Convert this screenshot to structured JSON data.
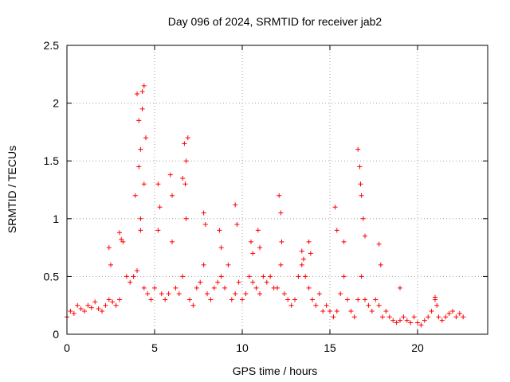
{
  "chart_data": {
    "type": "scatter",
    "title": "Day 096 of 2024, SRMTID for receiver jab2",
    "xlabel": "GPS time / hours",
    "ylabel": "SRMTID / TECUs",
    "xlim": [
      0,
      24
    ],
    "ylim": [
      0,
      2.5
    ],
    "x_ticks": [
      "0",
      "5",
      "10",
      "15",
      "20"
    ],
    "y_ticks": [
      "0",
      "0.5",
      "1",
      "1.5",
      "2",
      "2.5"
    ],
    "grid": true,
    "marker": "plus",
    "series": [
      {
        "name": "SRMTID",
        "color": "#ff0000",
        "x": [
          0.0,
          0.2,
          0.4,
          0.6,
          0.8,
          1.0,
          1.2,
          1.4,
          1.6,
          1.8,
          2.0,
          2.2,
          2.4,
          2.6,
          2.8,
          3.0,
          3.2,
          3.4,
          3.6,
          3.8,
          4.0,
          4.2,
          4.4,
          4.6,
          4.8,
          5.0,
          5.2,
          5.4,
          5.6,
          5.8,
          6.0,
          6.2,
          6.4,
          6.6,
          6.8,
          7.0,
          7.2,
          7.4,
          7.6,
          7.8,
          8.0,
          8.2,
          8.4,
          8.6,
          8.8,
          9.0,
          9.2,
          9.4,
          9.6,
          9.8,
          10.0,
          10.2,
          10.4,
          10.6,
          10.8,
          11.0,
          11.2,
          11.4,
          11.6,
          11.8,
          12.0,
          12.2,
          12.4,
          12.6,
          12.8,
          13.0,
          13.2,
          13.4,
          13.6,
          13.8,
          14.0,
          14.2,
          14.4,
          14.6,
          14.8,
          15.0,
          15.2,
          15.4,
          15.6,
          15.8,
          16.0,
          16.2,
          16.4,
          16.6,
          16.8,
          17.0,
          17.2,
          17.4,
          17.6,
          17.8,
          18.0,
          18.2,
          18.4,
          18.6,
          18.8,
          19.0,
          19.2,
          19.4,
          19.6,
          19.8,
          20.0,
          20.2,
          20.4,
          20.6,
          20.8,
          21.0,
          21.2,
          21.4,
          21.6,
          21.8,
          22.0,
          22.2,
          22.4,
          22.6,
          4.0,
          4.1,
          4.2,
          4.3,
          4.4,
          4.5,
          4.1,
          4.3,
          4.4,
          3.9,
          4.2,
          5.2,
          5.3,
          5.9,
          6.0,
          6.6,
          6.7,
          6.8,
          6.9,
          6.75,
          7.8,
          7.9,
          8.7,
          8.8,
          9.6,
          9.7,
          10.5,
          10.6,
          10.9,
          11.0,
          12.1,
          12.2,
          12.25,
          13.4,
          13.5,
          13.8,
          13.9,
          15.3,
          15.4,
          15.8,
          16.6,
          16.7,
          16.75,
          16.8,
          16.9,
          17.0,
          17.8,
          17.9,
          19.0,
          21.0,
          21.1,
          3.0,
          3.1,
          2.4,
          2.5
        ],
        "y": [
          0.15,
          0.2,
          0.18,
          0.25,
          0.22,
          0.2,
          0.25,
          0.23,
          0.28,
          0.22,
          0.2,
          0.25,
          0.3,
          0.28,
          0.25,
          0.3,
          0.8,
          0.5,
          0.45,
          0.5,
          0.55,
          0.9,
          0.4,
          0.35,
          0.3,
          0.4,
          0.9,
          0.35,
          0.3,
          0.35,
          0.8,
          0.4,
          0.35,
          0.5,
          1.0,
          0.3,
          0.25,
          0.4,
          0.45,
          0.6,
          0.35,
          0.3,
          0.4,
          0.45,
          0.5,
          0.4,
          0.6,
          0.3,
          0.35,
          0.45,
          0.3,
          0.35,
          0.5,
          0.45,
          0.4,
          0.35,
          0.5,
          0.45,
          0.5,
          0.4,
          0.4,
          0.6,
          0.35,
          0.3,
          0.25,
          0.3,
          0.5,
          0.6,
          0.5,
          0.4,
          0.3,
          0.25,
          0.35,
          0.2,
          0.25,
          0.2,
          0.15,
          0.2,
          0.35,
          0.5,
          0.3,
          0.2,
          0.15,
          0.3,
          0.5,
          0.3,
          0.25,
          0.2,
          0.3,
          0.25,
          0.15,
          0.2,
          0.15,
          0.12,
          0.1,
          0.12,
          0.15,
          0.12,
          0.1,
          0.15,
          0.1,
          0.08,
          0.12,
          0.15,
          0.2,
          0.3,
          0.15,
          0.12,
          0.15,
          0.18,
          0.2,
          0.15,
          0.18,
          0.15,
          2.08,
          1.85,
          1.6,
          1.95,
          2.15,
          1.7,
          1.45,
          2.1,
          1.3,
          1.2,
          1.0,
          1.3,
          1.1,
          1.38,
          1.2,
          1.35,
          1.65,
          1.5,
          1.7,
          1.3,
          1.05,
          0.95,
          0.9,
          0.75,
          1.12,
          0.95,
          0.8,
          0.7,
          0.9,
          0.75,
          1.2,
          1.05,
          0.8,
          0.72,
          0.65,
          0.8,
          0.7,
          1.1,
          0.9,
          0.8,
          1.6,
          1.45,
          1.3,
          1.2,
          1.0,
          0.85,
          0.78,
          0.6,
          0.4,
          0.32,
          0.25,
          0.88,
          0.82,
          0.75,
          0.6
        ]
      }
    ]
  }
}
